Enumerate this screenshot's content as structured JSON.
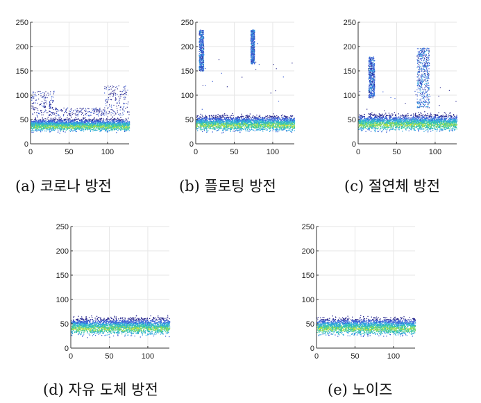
{
  "figure": {
    "colors": {
      "axis": "#333333",
      "grid": "#e6e6e6",
      "colormap": [
        "#2b2a8f",
        "#3c5fd6",
        "#2ea6df",
        "#36c9a5",
        "#9bdc4f",
        "#f2e23b"
      ]
    }
  },
  "chart_data": [
    {
      "type": "scatter",
      "caption": "(a) 코로나 방전",
      "xlim": [
        0,
        128
      ],
      "ylim": [
        0,
        250
      ],
      "xticks": [
        "0",
        "50",
        "100"
      ],
      "yticks": [
        "0",
        "50",
        "100",
        "150",
        "200",
        "250"
      ],
      "grid": true,
      "density": [
        {
          "x": [
            0,
            128
          ],
          "y": [
            22,
            58
          ],
          "level": "dense"
        },
        {
          "x": [
            0,
            30
          ],
          "y": [
            58,
            110
          ],
          "level": "sparse"
        },
        {
          "x": [
            95,
            128
          ],
          "y": [
            58,
            120
          ],
          "level": "sparse"
        },
        {
          "x": [
            30,
            95
          ],
          "y": [
            58,
            75
          ],
          "level": "sparse"
        }
      ]
    },
    {
      "type": "scatter",
      "caption": "(b) 플로팅 방전",
      "xlim": [
        0,
        128
      ],
      "ylim": [
        0,
        250
      ],
      "xticks": [
        "0",
        "50",
        "100"
      ],
      "yticks": [
        "0",
        "50",
        "100",
        "150",
        "200",
        "250"
      ],
      "grid": true,
      "density": [
        {
          "x": [
            0,
            128
          ],
          "y": [
            22,
            65
          ],
          "level": "dense"
        },
        {
          "x": [
            4,
            10
          ],
          "y": [
            150,
            235
          ],
          "level": "cluster"
        },
        {
          "x": [
            71,
            76
          ],
          "y": [
            165,
            235
          ],
          "level": "cluster"
        },
        {
          "x": [
            0,
            128
          ],
          "y": [
            65,
            230
          ],
          "level": "trace"
        }
      ]
    },
    {
      "type": "scatter",
      "caption": "(c) 절연체 방전",
      "xlim": [
        0,
        128
      ],
      "ylim": [
        0,
        250
      ],
      "xticks": [
        "0",
        "50",
        "100"
      ],
      "yticks": [
        "0",
        "50",
        "100",
        "150",
        "200",
        "250"
      ],
      "grid": true,
      "density": [
        {
          "x": [
            0,
            128
          ],
          "y": [
            22,
            68
          ],
          "level": "dense"
        },
        {
          "x": [
            13,
            21
          ],
          "y": [
            95,
            180
          ],
          "level": "cluster"
        },
        {
          "x": [
            76,
            92
          ],
          "y": [
            75,
            198
          ],
          "level": "cluster"
        },
        {
          "x": [
            0,
            128
          ],
          "y": [
            68,
            120
          ],
          "level": "trace"
        }
      ]
    },
    {
      "type": "scatter",
      "caption": "(d) 자유 도체 방전",
      "xlim": [
        0,
        128
      ],
      "ylim": [
        0,
        250
      ],
      "xticks": [
        "0",
        "50",
        "100"
      ],
      "yticks": [
        "0",
        "50",
        "100",
        "150",
        "200",
        "250"
      ],
      "grid": true,
      "density": [
        {
          "x": [
            0,
            128
          ],
          "y": [
            22,
            70
          ],
          "level": "dense"
        }
      ]
    },
    {
      "type": "scatter",
      "caption": "(e) 노이즈",
      "xlim": [
        0,
        128
      ],
      "ylim": [
        0,
        250
      ],
      "xticks": [
        "0",
        "50",
        "100"
      ],
      "yticks": [
        "0",
        "50",
        "100",
        "150",
        "200",
        "250"
      ],
      "grid": true,
      "density": [
        {
          "x": [
            0,
            128
          ],
          "y": [
            22,
            70
          ],
          "level": "dense"
        }
      ]
    }
  ]
}
